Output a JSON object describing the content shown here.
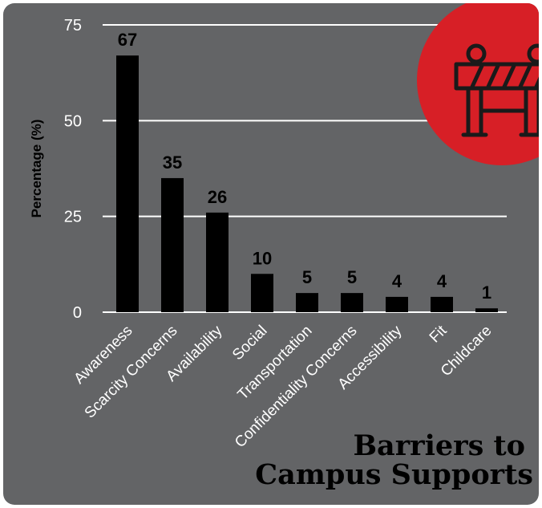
{
  "colors": {
    "background": "#636466",
    "bar": "#000000",
    "grid": "#ffffff",
    "accent": "#d71f26",
    "value_label": "#000000",
    "tick_label": "#ffffff"
  },
  "icon": "road-barrier-icon",
  "title_lines": [
    "Barriers to",
    "Campus Supports"
  ],
  "chart_data": {
    "type": "bar",
    "title": "Barriers to Campus Supports",
    "xlabel": "",
    "ylabel": "Percentage (%)",
    "ylim": [
      0,
      75
    ],
    "yticks": [
      0,
      25,
      50,
      75
    ],
    "grid": true,
    "categories": [
      "Awareness",
      "Scarcity Concerns",
      "Availability",
      "Social",
      "Transportation",
      "Confidentiality Concerns",
      "Accessibility",
      "Fit",
      "Childcare"
    ],
    "values": [
      67,
      35,
      26,
      10,
      5,
      5,
      4,
      4,
      1
    ],
    "value_labels": [
      "67",
      "35",
      "26",
      "10",
      "5",
      "5",
      "4",
      "4",
      "1"
    ]
  }
}
